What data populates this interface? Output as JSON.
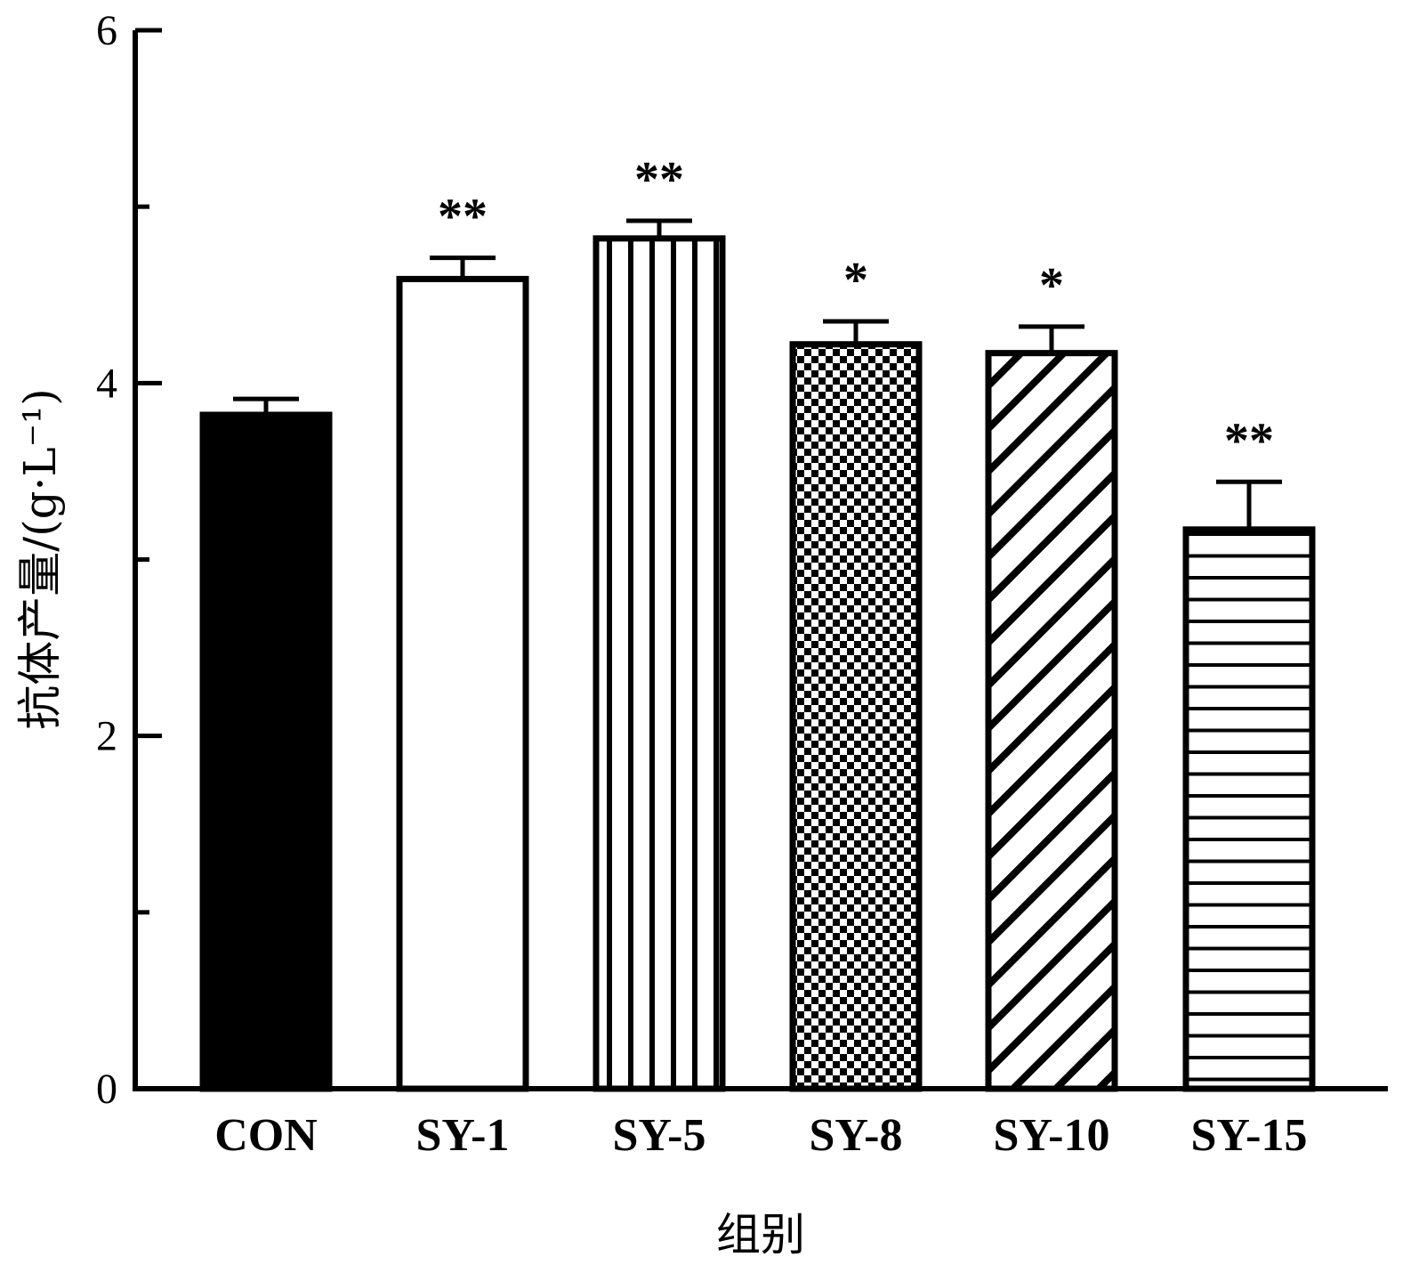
{
  "chart_data": {
    "type": "bar",
    "categories": [
      "CON",
      "SY-1",
      "SY-5",
      "SY-8",
      "SY-10",
      "SY-15"
    ],
    "values": [
      3.82,
      4.59,
      4.82,
      4.22,
      4.17,
      3.17
    ],
    "errors": [
      0.09,
      0.12,
      0.1,
      0.13,
      0.15,
      0.27
    ],
    "significance": [
      "",
      "**",
      "**",
      "*",
      "*",
      "**"
    ],
    "patterns": [
      "solid",
      "blank",
      "vertical-lines",
      "checkerboard",
      "diagonal-lines",
      "horizontal-lines"
    ],
    "xlabel": "组别",
    "ylabel": "抗体产量/(g·L⁻¹)",
    "ylim": [
      0,
      6
    ],
    "yticks": [
      0,
      2,
      4,
      6
    ],
    "grid": false,
    "colors": {
      "bar_fill": "#000000",
      "bar_stroke": "#000000",
      "background": "#ffffff"
    }
  }
}
